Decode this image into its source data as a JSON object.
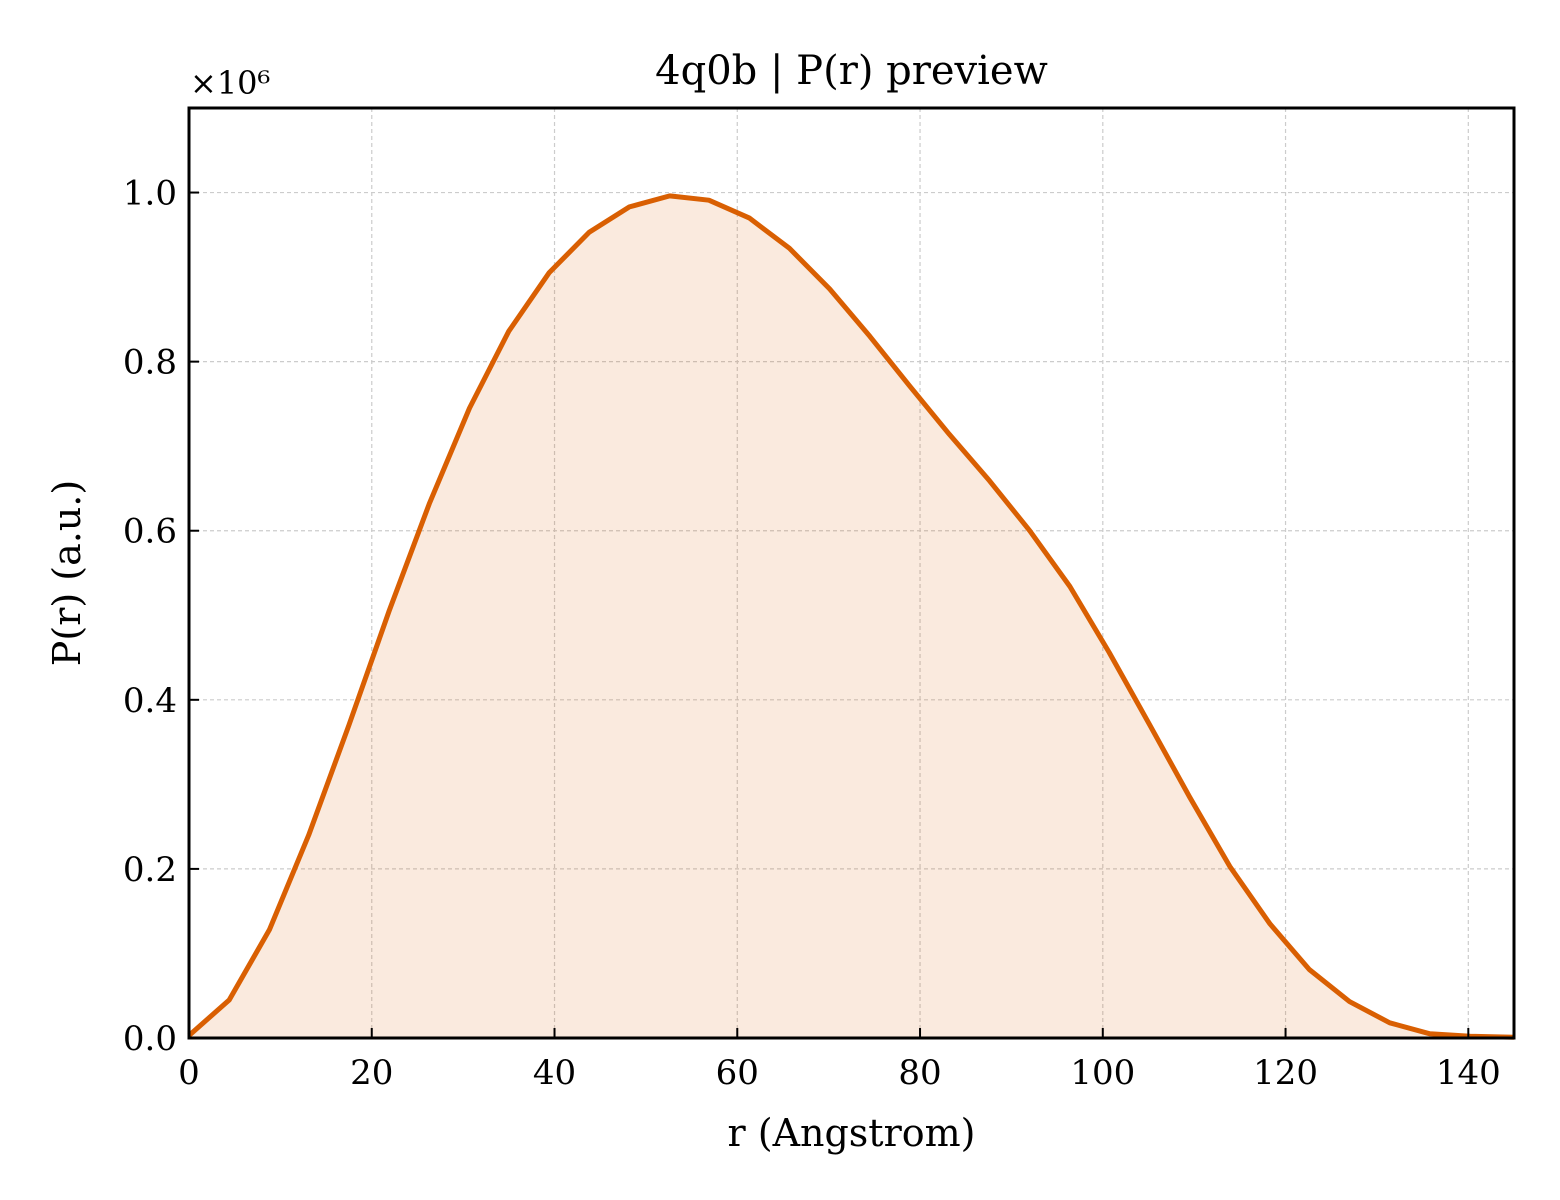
{
  "chart_data": {
    "type": "area",
    "title": "4q0b | P(r) preview",
    "xlabel": "r (Angstrom)",
    "ylabel": "P(r) (a.u.)",
    "y_multiplier_label": "×10⁶",
    "xlim": [
      0,
      145
    ],
    "ylim": [
      0,
      1.1
    ],
    "xticks": [
      0,
      20,
      40,
      60,
      80,
      100,
      120,
      140
    ],
    "yticks": [
      0.0,
      0.2,
      0.4,
      0.6,
      0.8,
      1.0
    ],
    "xtick_labels": [
      "0",
      "20",
      "40",
      "60",
      "80",
      "100",
      "120",
      "140"
    ],
    "ytick_labels": [
      "0.0",
      "0.2",
      "0.4",
      "0.6",
      "0.8",
      "1.0"
    ],
    "grid": true,
    "legend": false,
    "colors": {
      "line": "#d95f02",
      "fill": "#d95f02"
    },
    "series": [
      {
        "x": [
          0,
          4.4,
          8.8,
          13.1,
          17.5,
          21.9,
          26.3,
          30.7,
          35.0,
          39.4,
          43.8,
          48.2,
          52.6,
          56.9,
          61.3,
          65.7,
          70.1,
          74.5,
          78.8,
          83.2,
          87.6,
          92.0,
          96.4,
          100.7,
          105.1,
          109.5,
          113.9,
          118.3,
          122.6,
          127.0,
          131.4,
          135.8,
          140.2,
          145.0
        ],
        "values": [
          0.003,
          0.045,
          0.128,
          0.24,
          0.37,
          0.505,
          0.632,
          0.745,
          0.836,
          0.905,
          0.953,
          0.983,
          0.996,
          0.991,
          0.97,
          0.934,
          0.886,
          0.83,
          0.772,
          0.714,
          0.659,
          0.6,
          0.534,
          0.456,
          0.371,
          0.285,
          0.203,
          0.135,
          0.081,
          0.043,
          0.018,
          0.005,
          0.002,
          0.001
        ]
      }
    ]
  }
}
